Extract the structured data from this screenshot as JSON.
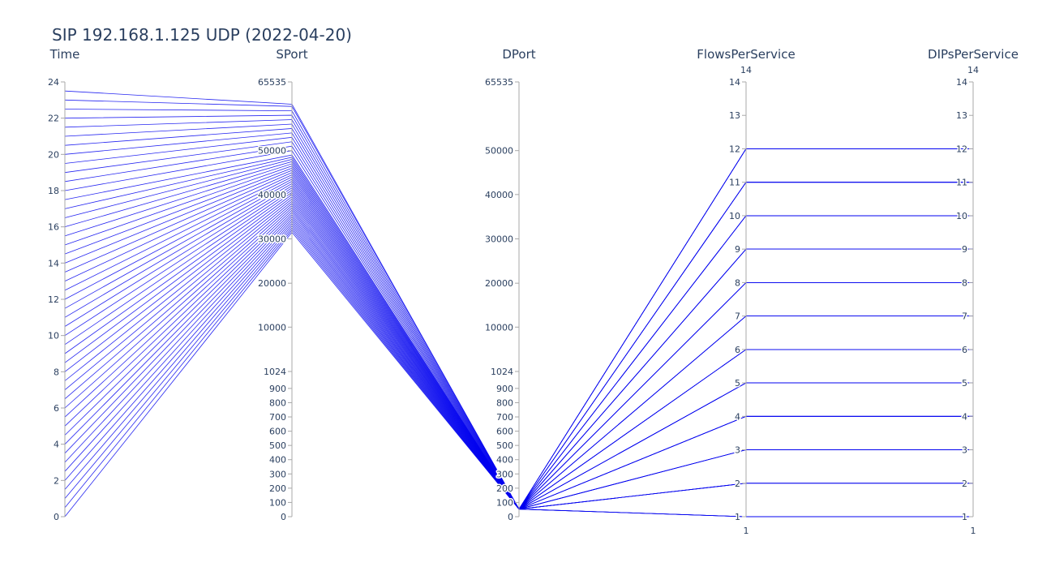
{
  "chart_data": {
    "type": "parallel_coordinates",
    "title": "SIP 192.168.1.125 UDP (2022-04-20)",
    "line_color": "#0000ee",
    "dimensions": [
      {
        "label": "Time",
        "scale": "linear",
        "range": [
          0,
          24
        ],
        "ticks": [
          "0",
          "2",
          "4",
          "6",
          "8",
          "10",
          "12",
          "14",
          "16",
          "18",
          "20",
          "22",
          "24"
        ],
        "tick_values": [
          0,
          2,
          4,
          6,
          8,
          10,
          12,
          14,
          16,
          18,
          20,
          22,
          24
        ],
        "top_label": "",
        "bottom_label": ""
      },
      {
        "label": "SPort",
        "scale": "port_piecewise",
        "range": [
          0,
          65535
        ],
        "ticks": [
          "0",
          "100",
          "200",
          "300",
          "400",
          "500",
          "600",
          "700",
          "800",
          "900",
          "1024",
          "10000",
          "20000",
          "30000",
          "40000",
          "50000",
          "65535"
        ],
        "tick_values": [
          0,
          100,
          200,
          300,
          400,
          500,
          600,
          700,
          800,
          900,
          1024,
          10000,
          20000,
          30000,
          40000,
          50000,
          65535
        ],
        "top_label": "",
        "bottom_label": ""
      },
      {
        "label": "DPort",
        "scale": "port_piecewise",
        "range": [
          0,
          65535
        ],
        "ticks": [
          "0",
          "100",
          "200",
          "300",
          "400",
          "500",
          "600",
          "700",
          "800",
          "900",
          "1024",
          "10000",
          "20000",
          "30000",
          "40000",
          "50000",
          "65535"
        ],
        "tick_values": [
          0,
          100,
          200,
          300,
          400,
          500,
          600,
          700,
          800,
          900,
          1024,
          10000,
          20000,
          30000,
          40000,
          50000,
          65535
        ],
        "top_label": "",
        "bottom_label": ""
      },
      {
        "label": "FlowsPerService",
        "scale": "linear",
        "range": [
          1,
          14
        ],
        "ticks": [
          "1",
          "2",
          "3",
          "4",
          "5",
          "6",
          "7",
          "8",
          "9",
          "10",
          "11",
          "12",
          "13",
          "14"
        ],
        "tick_values": [
          1,
          2,
          3,
          4,
          5,
          6,
          7,
          8,
          9,
          10,
          11,
          12,
          13,
          14
        ],
        "top_label": "14",
        "bottom_label": "1"
      },
      {
        "label": "DIPsPerService",
        "scale": "linear",
        "range": [
          1,
          14
        ],
        "ticks": [
          "1",
          "2",
          "3",
          "4",
          "5",
          "6",
          "7",
          "8",
          "9",
          "10",
          "11",
          "12",
          "13",
          "14"
        ],
        "tick_values": [
          1,
          2,
          3,
          4,
          5,
          6,
          7,
          8,
          9,
          10,
          11,
          12,
          13,
          14
        ],
        "top_label": "14",
        "bottom_label": "1"
      }
    ],
    "lines": [
      {
        "Time": 0.0,
        "SPort": 31500,
        "DPort": 53,
        "FlowsPerService": 1,
        "DIPsPerService": 1
      },
      {
        "Time": 0.5,
        "SPort": 32000,
        "DPort": 53,
        "FlowsPerService": 2,
        "DIPsPerService": 2
      },
      {
        "Time": 1.0,
        "SPort": 32500,
        "DPort": 53,
        "FlowsPerService": 3,
        "DIPsPerService": 3
      },
      {
        "Time": 1.5,
        "SPort": 33000,
        "DPort": 53,
        "FlowsPerService": 4,
        "DIPsPerService": 4
      },
      {
        "Time": 2.0,
        "SPort": 33500,
        "DPort": 53,
        "FlowsPerService": 5,
        "DIPsPerService": 5
      },
      {
        "Time": 2.5,
        "SPort": 34000,
        "DPort": 53,
        "FlowsPerService": 6,
        "DIPsPerService": 6
      },
      {
        "Time": 3.0,
        "SPort": 34500,
        "DPort": 53,
        "FlowsPerService": 7,
        "DIPsPerService": 7
      },
      {
        "Time": 3.5,
        "SPort": 35000,
        "DPort": 53,
        "FlowsPerService": 8,
        "DIPsPerService": 8
      },
      {
        "Time": 4.0,
        "SPort": 35500,
        "DPort": 53,
        "FlowsPerService": 9,
        "DIPsPerService": 9
      },
      {
        "Time": 4.5,
        "SPort": 36000,
        "DPort": 53,
        "FlowsPerService": 10,
        "DIPsPerService": 10
      },
      {
        "Time": 5.0,
        "SPort": 36500,
        "DPort": 53,
        "FlowsPerService": 11,
        "DIPsPerService": 11
      },
      {
        "Time": 5.5,
        "SPort": 37000,
        "DPort": 53,
        "FlowsPerService": 12,
        "DIPsPerService": 12
      },
      {
        "Time": 6.0,
        "SPort": 37500,
        "DPort": 53,
        "FlowsPerService": 1,
        "DIPsPerService": 1
      },
      {
        "Time": 6.5,
        "SPort": 38000,
        "DPort": 53,
        "FlowsPerService": 2,
        "DIPsPerService": 2
      },
      {
        "Time": 7.0,
        "SPort": 38500,
        "DPort": 53,
        "FlowsPerService": 3,
        "DIPsPerService": 3
      },
      {
        "Time": 7.5,
        "SPort": 39000,
        "DPort": 53,
        "FlowsPerService": 4,
        "DIPsPerService": 4
      },
      {
        "Time": 8.0,
        "SPort": 39500,
        "DPort": 53,
        "FlowsPerService": 5,
        "DIPsPerService": 5
      },
      {
        "Time": 8.5,
        "SPort": 40000,
        "DPort": 53,
        "FlowsPerService": 6,
        "DIPsPerService": 6
      },
      {
        "Time": 9.0,
        "SPort": 40500,
        "DPort": 53,
        "FlowsPerService": 7,
        "DIPsPerService": 7
      },
      {
        "Time": 9.5,
        "SPort": 41000,
        "DPort": 53,
        "FlowsPerService": 8,
        "DIPsPerService": 8
      },
      {
        "Time": 10.0,
        "SPort": 41500,
        "DPort": 53,
        "FlowsPerService": 9,
        "DIPsPerService": 9
      },
      {
        "Time": 10.5,
        "SPort": 42000,
        "DPort": 53,
        "FlowsPerService": 10,
        "DIPsPerService": 10
      },
      {
        "Time": 11.0,
        "SPort": 42500,
        "DPort": 53,
        "FlowsPerService": 11,
        "DIPsPerService": 11
      },
      {
        "Time": 11.5,
        "SPort": 43000,
        "DPort": 53,
        "FlowsPerService": 12,
        "DIPsPerService": 12
      },
      {
        "Time": 12.0,
        "SPort": 43500,
        "DPort": 53,
        "FlowsPerService": 1,
        "DIPsPerService": 1
      },
      {
        "Time": 12.5,
        "SPort": 44000,
        "DPort": 53,
        "FlowsPerService": 2,
        "DIPsPerService": 2
      },
      {
        "Time": 13.0,
        "SPort": 44500,
        "DPort": 53,
        "FlowsPerService": 3,
        "DIPsPerService": 3
      },
      {
        "Time": 13.5,
        "SPort": 45000,
        "DPort": 53,
        "FlowsPerService": 4,
        "DIPsPerService": 4
      },
      {
        "Time": 14.0,
        "SPort": 45500,
        "DPort": 53,
        "FlowsPerService": 5,
        "DIPsPerService": 5
      },
      {
        "Time": 14.5,
        "SPort": 46000,
        "DPort": 53,
        "FlowsPerService": 6,
        "DIPsPerService": 6
      },
      {
        "Time": 15.0,
        "SPort": 46500,
        "DPort": 53,
        "FlowsPerService": 7,
        "DIPsPerService": 7
      },
      {
        "Time": 15.5,
        "SPort": 47000,
        "DPort": 53,
        "FlowsPerService": 8,
        "DIPsPerService": 8
      },
      {
        "Time": 16.0,
        "SPort": 47500,
        "DPort": 53,
        "FlowsPerService": 9,
        "DIPsPerService": 9
      },
      {
        "Time": 16.5,
        "SPort": 48000,
        "DPort": 53,
        "FlowsPerService": 10,
        "DIPsPerService": 10
      },
      {
        "Time": 17.0,
        "SPort": 48500,
        "DPort": 53,
        "FlowsPerService": 11,
        "DIPsPerService": 11
      },
      {
        "Time": 17.5,
        "SPort": 49000,
        "DPort": 53,
        "FlowsPerService": 12,
        "DIPsPerService": 12
      },
      {
        "Time": 18.0,
        "SPort": 50000,
        "DPort": 53,
        "FlowsPerService": 1,
        "DIPsPerService": 1
      },
      {
        "Time": 18.5,
        "SPort": 51000,
        "DPort": 53,
        "FlowsPerService": 2,
        "DIPsPerService": 2
      },
      {
        "Time": 19.0,
        "SPort": 52000,
        "DPort": 53,
        "FlowsPerService": 3,
        "DIPsPerService": 3
      },
      {
        "Time": 19.5,
        "SPort": 53000,
        "DPort": 53,
        "FlowsPerService": 4,
        "DIPsPerService": 4
      },
      {
        "Time": 20.0,
        "SPort": 54000,
        "DPort": 53,
        "FlowsPerService": 5,
        "DIPsPerService": 5
      },
      {
        "Time": 20.5,
        "SPort": 55000,
        "DPort": 53,
        "FlowsPerService": 6,
        "DIPsPerService": 6
      },
      {
        "Time": 21.0,
        "SPort": 56000,
        "DPort": 53,
        "FlowsPerService": 7,
        "DIPsPerService": 7
      },
      {
        "Time": 21.5,
        "SPort": 57000,
        "DPort": 53,
        "FlowsPerService": 8,
        "DIPsPerService": 8
      },
      {
        "Time": 22.0,
        "SPort": 58000,
        "DPort": 53,
        "FlowsPerService": 9,
        "DIPsPerService": 9
      },
      {
        "Time": 22.5,
        "SPort": 59000,
        "DPort": 53,
        "FlowsPerService": 10,
        "DIPsPerService": 10
      },
      {
        "Time": 23.0,
        "SPort": 60000,
        "DPort": 53,
        "FlowsPerService": 11,
        "DIPsPerService": 11
      },
      {
        "Time": 23.5,
        "SPort": 60500,
        "DPort": 53,
        "FlowsPerService": 12,
        "DIPsPerService": 12
      }
    ]
  }
}
